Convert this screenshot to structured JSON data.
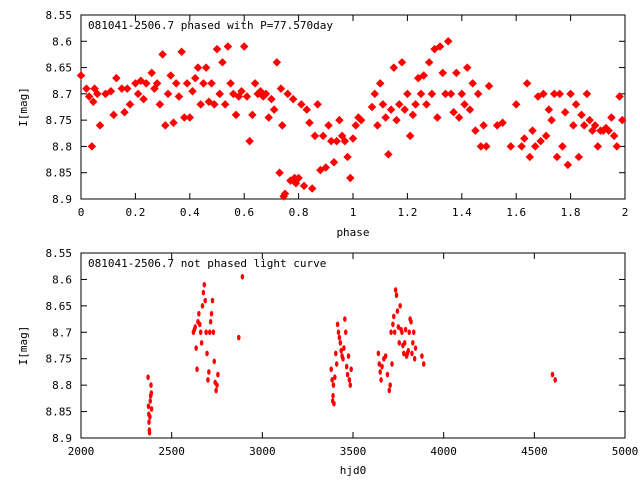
{
  "chart_data": [
    {
      "type": "scatter",
      "title": "081041-2506.7 phased with P=77.570day",
      "xlabel": "phase",
      "ylabel": "I[mag]",
      "xlim": [
        0,
        2
      ],
      "ylim": [
        8.9,
        8.55
      ],
      "x_ticks": [
        "0",
        "0.2",
        "0.4",
        "0.6",
        "0.8",
        "1",
        "1.2",
        "1.4",
        "1.6",
        "1.8",
        "2"
      ],
      "y_ticks": [
        "8.55",
        "8.6",
        "8.65",
        "8.7",
        "8.75",
        "8.8",
        "8.85",
        "8.9"
      ],
      "grid": false,
      "marker_color": "#ff0000",
      "points": [
        [
          0.0,
          8.665
        ],
        [
          0.02,
          8.69
        ],
        [
          0.03,
          8.705
        ],
        [
          0.04,
          8.8
        ],
        [
          0.045,
          8.715
        ],
        [
          0.05,
          8.69
        ],
        [
          0.06,
          8.7
        ],
        [
          0.07,
          8.76
        ],
        [
          0.09,
          8.7
        ],
        [
          0.11,
          8.695
        ],
        [
          0.12,
          8.74
        ],
        [
          0.13,
          8.67
        ],
        [
          0.15,
          8.69
        ],
        [
          0.16,
          8.735
        ],
        [
          0.17,
          8.69
        ],
        [
          0.18,
          8.72
        ],
        [
          0.2,
          8.68
        ],
        [
          0.21,
          8.7
        ],
        [
          0.22,
          8.675
        ],
        [
          0.23,
          8.71
        ],
        [
          0.24,
          8.68
        ],
        [
          0.26,
          8.66
        ],
        [
          0.27,
          8.69
        ],
        [
          0.28,
          8.68
        ],
        [
          0.29,
          8.72
        ],
        [
          0.3,
          8.625
        ],
        [
          0.31,
          8.76
        ],
        [
          0.32,
          8.7
        ],
        [
          0.33,
          8.665
        ],
        [
          0.34,
          8.755
        ],
        [
          0.35,
          8.68
        ],
        [
          0.36,
          8.705
        ],
        [
          0.37,
          8.62
        ],
        [
          0.38,
          8.745
        ],
        [
          0.39,
          8.68
        ],
        [
          0.4,
          8.745
        ],
        [
          0.41,
          8.695
        ],
        [
          0.42,
          8.67
        ],
        [
          0.43,
          8.65
        ],
        [
          0.44,
          8.72
        ],
        [
          0.45,
          8.68
        ],
        [
          0.46,
          8.65
        ],
        [
          0.47,
          8.715
        ],
        [
          0.48,
          8.68
        ],
        [
          0.49,
          8.72
        ],
        [
          0.5,
          8.615
        ],
        [
          0.51,
          8.7
        ],
        [
          0.52,
          8.64
        ],
        [
          0.53,
          8.72
        ],
        [
          0.54,
          8.61
        ],
        [
          0.55,
          8.68
        ],
        [
          0.56,
          8.7
        ],
        [
          0.57,
          8.74
        ],
        [
          0.58,
          8.705
        ],
        [
          0.59,
          8.695
        ],
        [
          0.6,
          8.61
        ],
        [
          0.61,
          8.705
        ],
        [
          0.62,
          8.79
        ],
        [
          0.63,
          8.74
        ],
        [
          0.64,
          8.68
        ],
        [
          0.65,
          8.7
        ],
        [
          0.66,
          8.695
        ],
        [
          0.67,
          8.705
        ],
        [
          0.68,
          8.7
        ],
        [
          0.69,
          8.745
        ],
        [
          0.7,
          8.71
        ],
        [
          0.71,
          8.73
        ],
        [
          0.72,
          8.64
        ],
        [
          0.73,
          8.85
        ],
        [
          0.735,
          8.69
        ],
        [
          0.74,
          8.76
        ],
        [
          0.745,
          8.895
        ],
        [
          0.75,
          8.89
        ],
        [
          0.76,
          8.7
        ],
        [
          0.77,
          8.865
        ],
        [
          0.78,
          8.71
        ],
        [
          0.785,
          8.86
        ],
        [
          0.79,
          8.87
        ],
        [
          0.8,
          8.86
        ],
        [
          0.81,
          8.72
        ],
        [
          0.82,
          8.875
        ],
        [
          0.83,
          8.73
        ],
        [
          0.84,
          8.755
        ],
        [
          0.85,
          8.88
        ],
        [
          0.86,
          8.78
        ],
        [
          0.87,
          8.72
        ],
        [
          0.88,
          8.845
        ],
        [
          0.89,
          8.78
        ],
        [
          0.9,
          8.84
        ],
        [
          0.91,
          8.76
        ],
        [
          0.92,
          8.79
        ],
        [
          0.93,
          8.83
        ],
        [
          0.94,
          8.79
        ],
        [
          0.95,
          8.75
        ],
        [
          0.96,
          8.78
        ],
        [
          0.97,
          8.79
        ],
        [
          0.98,
          8.82
        ],
        [
          0.99,
          8.86
        ],
        [
          1.0,
          8.785
        ],
        [
          1.01,
          8.76
        ],
        [
          1.02,
          8.745
        ],
        [
          1.03,
          8.75
        ],
        [
          1.07,
          8.725
        ],
        [
          1.08,
          8.7
        ],
        [
          1.09,
          8.76
        ],
        [
          1.1,
          8.68
        ],
        [
          1.11,
          8.72
        ],
        [
          1.12,
          8.745
        ],
        [
          1.13,
          8.815
        ],
        [
          1.14,
          8.73
        ],
        [
          1.15,
          8.65
        ],
        [
          1.16,
          8.75
        ],
        [
          1.17,
          8.72
        ],
        [
          1.18,
          8.64
        ],
        [
          1.19,
          8.73
        ],
        [
          1.2,
          8.7
        ],
        [
          1.21,
          8.78
        ],
        [
          1.22,
          8.74
        ],
        [
          1.23,
          8.72
        ],
        [
          1.24,
          8.67
        ],
        [
          1.25,
          8.7
        ],
        [
          1.26,
          8.665
        ],
        [
          1.27,
          8.72
        ],
        [
          1.28,
          8.64
        ],
        [
          1.29,
          8.7
        ],
        [
          1.3,
          8.615
        ],
        [
          1.31,
          8.745
        ],
        [
          1.32,
          8.61
        ],
        [
          1.33,
          8.66
        ],
        [
          1.34,
          8.7
        ],
        [
          1.35,
          8.6
        ],
        [
          1.36,
          8.7
        ],
        [
          1.37,
          8.735
        ],
        [
          1.38,
          8.66
        ],
        [
          1.39,
          8.745
        ],
        [
          1.4,
          8.7
        ],
        [
          1.41,
          8.72
        ],
        [
          1.42,
          8.65
        ],
        [
          1.43,
          8.73
        ],
        [
          1.44,
          8.68
        ],
        [
          1.45,
          8.77
        ],
        [
          1.46,
          8.7
        ],
        [
          1.47,
          8.8
        ],
        [
          1.48,
          8.76
        ],
        [
          1.49,
          8.8
        ],
        [
          1.5,
          8.685
        ],
        [
          1.53,
          8.76
        ],
        [
          1.55,
          8.755
        ],
        [
          1.58,
          8.8
        ],
        [
          1.6,
          8.72
        ],
        [
          1.62,
          8.8
        ],
        [
          1.63,
          8.785
        ],
        [
          1.64,
          8.68
        ],
        [
          1.65,
          8.82
        ],
        [
          1.66,
          8.77
        ],
        [
          1.67,
          8.8
        ],
        [
          1.68,
          8.705
        ],
        [
          1.69,
          8.79
        ],
        [
          1.7,
          8.7
        ],
        [
          1.71,
          8.78
        ],
        [
          1.72,
          8.73
        ],
        [
          1.73,
          8.75
        ],
        [
          1.74,
          8.7
        ],
        [
          1.75,
          8.82
        ],
        [
          1.76,
          8.7
        ],
        [
          1.77,
          8.8
        ],
        [
          1.78,
          8.735
        ],
        [
          1.79,
          8.835
        ],
        [
          1.8,
          8.7
        ],
        [
          1.81,
          8.76
        ],
        [
          1.82,
          8.72
        ],
        [
          1.83,
          8.82
        ],
        [
          1.84,
          8.74
        ],
        [
          1.85,
          8.76
        ],
        [
          1.86,
          8.7
        ],
        [
          1.87,
          8.75
        ],
        [
          1.88,
          8.77
        ],
        [
          1.89,
          8.76
        ],
        [
          1.9,
          8.8
        ],
        [
          1.91,
          8.77
        ],
        [
          1.92,
          8.77
        ],
        [
          1.93,
          8.765
        ],
        [
          1.94,
          8.77
        ],
        [
          1.95,
          8.745
        ],
        [
          1.96,
          8.78
        ],
        [
          1.97,
          8.8
        ],
        [
          1.98,
          8.705
        ],
        [
          1.99,
          8.75
        ]
      ]
    },
    {
      "type": "scatter",
      "title": "081041-2506.7 not phased light curve",
      "xlabel": "hjd0",
      "ylabel": "I[mag]",
      "xlim": [
        2000,
        5000
      ],
      "ylim": [
        8.9,
        8.55
      ],
      "x_ticks": [
        "2000",
        "2500",
        "3000",
        "3500",
        "4000",
        "4500",
        "5000"
      ],
      "y_ticks": [
        "8.55",
        "8.6",
        "8.65",
        "8.7",
        "8.75",
        "8.8",
        "8.85",
        "8.9"
      ],
      "grid": false,
      "marker_color": "#ff0000",
      "points": [
        [
          2370,
          8.785
        ],
        [
          2372,
          8.84
        ],
        [
          2374,
          8.855
        ],
        [
          2375,
          8.87
        ],
        [
          2377,
          8.885
        ],
        [
          2378,
          8.89
        ],
        [
          2380,
          8.86
        ],
        [
          2382,
          8.83
        ],
        [
          2384,
          8.82
        ],
        [
          2386,
          8.8
        ],
        [
          2388,
          8.815
        ],
        [
          2389,
          8.845
        ],
        [
          2620,
          8.7
        ],
        [
          2625,
          8.695
        ],
        [
          2630,
          8.69
        ],
        [
          2635,
          8.73
        ],
        [
          2640,
          8.77
        ],
        [
          2645,
          8.68
        ],
        [
          2650,
          8.665
        ],
        [
          2655,
          8.685
        ],
        [
          2660,
          8.7
        ],
        [
          2665,
          8.72
        ],
        [
          2670,
          8.65
        ],
        [
          2675,
          8.625
        ],
        [
          2680,
          8.61
        ],
        [
          2685,
          8.64
        ],
        [
          2690,
          8.7
        ],
        [
          2695,
          8.74
        ],
        [
          2700,
          8.79
        ],
        [
          2705,
          8.775
        ],
        [
          2710,
          8.7
        ],
        [
          2715,
          8.68
        ],
        [
          2720,
          8.665
        ],
        [
          2725,
          8.64
        ],
        [
          2730,
          8.7
        ],
        [
          2735,
          8.755
        ],
        [
          2740,
          8.795
        ],
        [
          2745,
          8.81
        ],
        [
          2750,
          8.8
        ],
        [
          2755,
          8.78
        ],
        [
          2870,
          8.71
        ],
        [
          2890,
          8.595
        ],
        [
          3380,
          8.77
        ],
        [
          3385,
          8.79
        ],
        [
          3388,
          8.83
        ],
        [
          3390,
          8.82
        ],
        [
          3392,
          8.8
        ],
        [
          3395,
          8.835
        ],
        [
          3400,
          8.785
        ],
        [
          3405,
          8.74
        ],
        [
          3410,
          8.76
        ],
        [
          3415,
          8.685
        ],
        [
          3420,
          8.7
        ],
        [
          3425,
          8.71
        ],
        [
          3430,
          8.72
        ],
        [
          3435,
          8.735
        ],
        [
          3440,
          8.745
        ],
        [
          3445,
          8.75
        ],
        [
          3450,
          8.73
        ],
        [
          3455,
          8.675
        ],
        [
          3460,
          8.7
        ],
        [
          3465,
          8.765
        ],
        [
          3470,
          8.78
        ],
        [
          3475,
          8.745
        ],
        [
          3480,
          8.79
        ],
        [
          3485,
          8.8
        ],
        [
          3490,
          8.77
        ],
        [
          3640,
          8.74
        ],
        [
          3645,
          8.76
        ],
        [
          3650,
          8.775
        ],
        [
          3655,
          8.79
        ],
        [
          3660,
          8.765
        ],
        [
          3670,
          8.75
        ],
        [
          3680,
          8.745
        ],
        [
          3690,
          8.78
        ],
        [
          3700,
          8.81
        ],
        [
          3705,
          8.8
        ],
        [
          3710,
          8.7
        ],
        [
          3715,
          8.76
        ],
        [
          3720,
          8.685
        ],
        [
          3725,
          8.67
        ],
        [
          3730,
          8.7
        ],
        [
          3735,
          8.62
        ],
        [
          3740,
          8.63
        ],
        [
          3745,
          8.66
        ],
        [
          3750,
          8.69
        ],
        [
          3755,
          8.72
        ],
        [
          3760,
          8.65
        ],
        [
          3765,
          8.695
        ],
        [
          3770,
          8.7
        ],
        [
          3775,
          8.725
        ],
        [
          3780,
          8.74
        ],
        [
          3785,
          8.72
        ],
        [
          3790,
          8.695
        ],
        [
          3795,
          8.745
        ],
        [
          3800,
          8.74
        ],
        [
          3805,
          8.735
        ],
        [
          3810,
          8.7
        ],
        [
          3815,
          8.675
        ],
        [
          3820,
          8.68
        ],
        [
          3825,
          8.74
        ],
        [
          3830,
          8.72
        ],
        [
          3835,
          8.7
        ],
        [
          3840,
          8.75
        ],
        [
          3845,
          8.73
        ],
        [
          3880,
          8.745
        ],
        [
          3890,
          8.76
        ],
        [
          4600,
          8.78
        ],
        [
          4615,
          8.79
        ]
      ]
    }
  ]
}
